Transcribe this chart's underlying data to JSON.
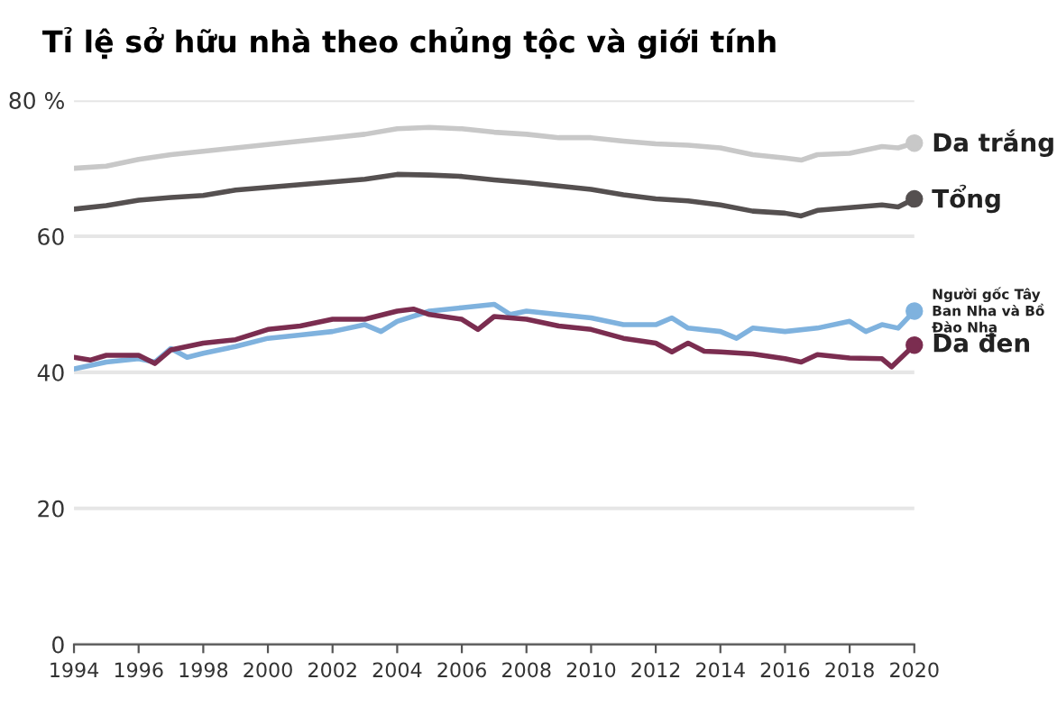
{
  "chart_data": {
    "type": "line",
    "title": "Tỉ lệ sở hữu nhà theo chủng tộc và giới tính",
    "xlim": [
      1994,
      2020
    ],
    "xticks": [
      1994,
      1996,
      1998,
      2000,
      2002,
      2004,
      2006,
      2008,
      2010,
      2012,
      2014,
      2016,
      2018,
      2020
    ],
    "ylim": [
      0,
      80
    ],
    "yticks": [
      0,
      20,
      40,
      60,
      {
        "value": 80,
        "label": "80 %"
      }
    ],
    "grid": "y",
    "line_style": "solid",
    "legend": false,
    "series": [
      {
        "name": "Da trắng",
        "color": "#c8c8c8",
        "x": [
          1994,
          1995,
          1996,
          1997,
          1998,
          1999,
          2000,
          2001,
          2002,
          2003,
          2004,
          2005,
          2006,
          2007,
          2008,
          2009,
          2010,
          2011,
          2012,
          2013,
          2014,
          2015,
          2016,
          2016.5,
          2017,
          2018,
          2019,
          2019.5,
          2020
        ],
        "values": [
          70.0,
          70.3,
          71.3,
          72.0,
          72.5,
          73.0,
          73.5,
          74.0,
          74.5,
          75.0,
          75.8,
          76.0,
          75.8,
          75.3,
          75.0,
          74.5,
          74.5,
          74.0,
          73.6,
          73.4,
          73.0,
          72.0,
          71.5,
          71.2,
          72.0,
          72.2,
          73.2,
          73.0,
          73.7
        ]
      },
      {
        "name": "Tổng",
        "color": "#555050",
        "x": [
          1994,
          1995,
          1996,
          1997,
          1998,
          1999,
          2000,
          2001,
          2002,
          2003,
          2004,
          2005,
          2006,
          2007,
          2008,
          2009,
          2010,
          2011,
          2012,
          2013,
          2014,
          2015,
          2016,
          2016.5,
          2017,
          2018,
          2019,
          2019.5,
          2020
        ],
        "values": [
          64.0,
          64.5,
          65.3,
          65.7,
          66.0,
          66.8,
          67.2,
          67.6,
          68.0,
          68.4,
          69.1,
          69.0,
          68.8,
          68.3,
          67.9,
          67.4,
          66.9,
          66.1,
          65.5,
          65.2,
          64.6,
          63.7,
          63.4,
          63.0,
          63.8,
          64.2,
          64.6,
          64.3,
          65.5
        ]
      },
      {
        "name": "Người gốc Tây Ban Nha và Bồ Đào Nha",
        "color": "#7fb2de",
        "x": [
          1994,
          1995,
          1996,
          1996.5,
          1997,
          1997.5,
          1998,
          1999,
          2000,
          2001,
          2002,
          2003,
          2003.5,
          2004,
          2005,
          2006,
          2007,
          2007.5,
          2008,
          2009,
          2010,
          2011,
          2012,
          2012.5,
          2013,
          2014,
          2014.5,
          2015,
          2016,
          2017,
          2018,
          2018.5,
          2019,
          2019.5,
          2020
        ],
        "values": [
          40.5,
          41.5,
          42.0,
          41.5,
          43.5,
          42.2,
          42.8,
          43.8,
          45.0,
          45.5,
          46.0,
          47.0,
          46.0,
          47.5,
          49.0,
          49.5,
          50.0,
          48.5,
          49.0,
          48.5,
          48.0,
          47.0,
          47.0,
          48.0,
          46.5,
          46.0,
          45.0,
          46.5,
          46.0,
          46.5,
          47.5,
          46.0,
          47.0,
          46.5,
          49.0
        ]
      },
      {
        "name": "Da đen",
        "color": "#7b2d50",
        "x": [
          1994,
          1994.5,
          1995,
          1996,
          1996.5,
          1997,
          1998,
          1999,
          2000,
          2001,
          2002,
          2003,
          2004,
          2004.5,
          2005,
          2006,
          2006.5,
          2007,
          2008,
          2009,
          2010,
          2011,
          2012,
          2012.5,
          2013,
          2013.5,
          2014,
          2015,
          2016,
          2016.5,
          2017,
          2018,
          2019,
          2019.3,
          2020
        ],
        "values": [
          42.2,
          41.8,
          42.5,
          42.5,
          41.3,
          43.3,
          44.3,
          44.8,
          46.3,
          46.8,
          47.8,
          47.8,
          49.0,
          49.3,
          48.5,
          47.8,
          46.3,
          48.2,
          47.8,
          46.8,
          46.3,
          45.0,
          44.3,
          43.0,
          44.3,
          43.1,
          43.0,
          42.7,
          42.0,
          41.5,
          42.6,
          42.1,
          42.0,
          40.8,
          44.0
        ]
      }
    ]
  }
}
